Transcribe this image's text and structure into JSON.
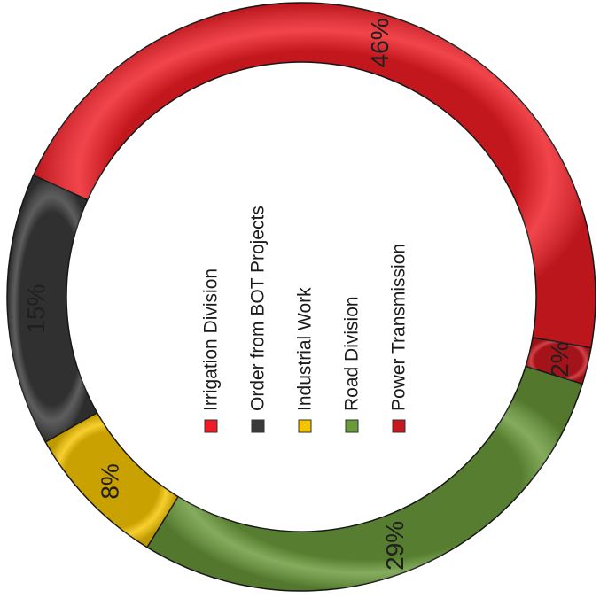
{
  "chart_data": {
    "type": "pie",
    "variant": "donut",
    "rotation": "rotated 90 degrees counter-clockwise",
    "legend_placement": "center",
    "slices": [
      {
        "label": "Irrigation Division",
        "value": 46,
        "display": "46%",
        "color": "#ee1c24"
      },
      {
        "label": "Order from BOT Projects",
        "value": 15,
        "display": "15%",
        "color": "#3a3a3a"
      },
      {
        "label": "Industrial Work",
        "value": 8,
        "display": "8%",
        "color": "#f5c400"
      },
      {
        "label": "Road Division",
        "value": 29,
        "display": "29%",
        "color": "#6a9a3a"
      },
      {
        "label": "Power Transmission",
        "value": 2,
        "display": "2%",
        "color": "#c8171f"
      }
    ]
  }
}
